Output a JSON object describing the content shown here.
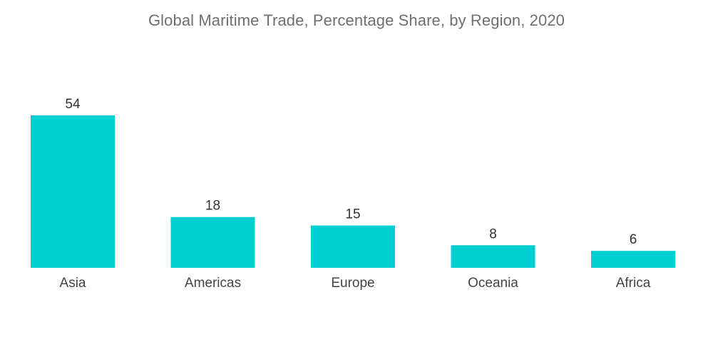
{
  "chart_data": {
    "type": "bar",
    "title": "Global Maritime Trade, Percentage Share, by Region,  2020",
    "categories": [
      "Asia",
      "Americas",
      "Europe",
      "Oceania",
      "Africa"
    ],
    "values": [
      54,
      18,
      15,
      8,
      6
    ],
    "xlabel": "",
    "ylabel": "",
    "ylim": [
      0,
      54
    ],
    "grid": false,
    "legend": "none",
    "bar_color": "#00ced1"
  }
}
